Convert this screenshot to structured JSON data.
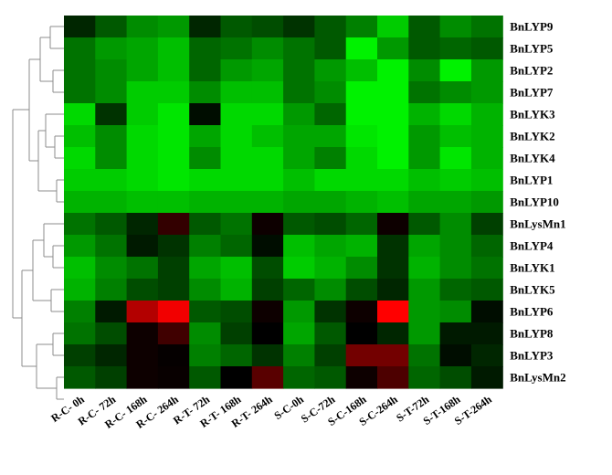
{
  "chart_data": {
    "type": "heatmap",
    "color_scale": {
      "low": "#00ff00",
      "mid": "#000000",
      "high": "#ff0000",
      "min": -1,
      "max": 1
    },
    "columns": [
      "R-C- 0h",
      "R-C- 72h",
      "R-C- 168h",
      "R-C- 264h",
      "R-T- 72h",
      "R-T- 168h",
      "R-T- 264h",
      "S-C-0h",
      "S-C-72h",
      "S-C-168h",
      "S-C-264h",
      "S-T-72h",
      "S-T-168h",
      "S-T-264h"
    ],
    "rows": [
      "BnLYP9",
      "BnLYP5",
      "BnLYP2",
      "BnLYP7",
      "BnLYK3",
      "BnLYK2",
      "BnLYK4",
      "BnLYP1",
      "BnLYP10",
      "BnLysMn1",
      "BnLYP4",
      "BnLYK1",
      "BnLYK5",
      "BnLYP6",
      "BnLYP8",
      "BnLYP3",
      "BnLysMn2"
    ],
    "values": [
      [
        -0.15,
        -0.35,
        -0.55,
        -0.6,
        -0.15,
        -0.35,
        -0.3,
        -0.2,
        -0.35,
        -0.5,
        -0.8,
        -0.35,
        -0.55,
        -0.45
      ],
      [
        -0.45,
        -0.6,
        -0.65,
        -0.75,
        -0.4,
        -0.45,
        -0.55,
        -0.45,
        -0.35,
        -0.95,
        -0.6,
        -0.35,
        -0.4,
        -0.35
      ],
      [
        -0.45,
        -0.55,
        -0.65,
        -0.75,
        -0.4,
        -0.6,
        -0.65,
        -0.45,
        -0.6,
        -0.75,
        -0.95,
        -0.55,
        -0.95,
        -0.6
      ],
      [
        -0.45,
        -0.55,
        -0.8,
        -0.8,
        -0.55,
        -0.75,
        -0.75,
        -0.45,
        -0.55,
        -0.95,
        -0.95,
        -0.45,
        -0.55,
        -0.6
      ],
      [
        -0.85,
        -0.2,
        -0.8,
        -0.9,
        -0.05,
        -0.85,
        -0.85,
        -0.6,
        -0.4,
        -0.95,
        -0.95,
        -0.7,
        -0.85,
        -0.7
      ],
      [
        -0.75,
        -0.55,
        -0.85,
        -0.9,
        -0.65,
        -0.85,
        -0.75,
        -0.65,
        -0.65,
        -0.9,
        -0.95,
        -0.6,
        -0.75,
        -0.7
      ],
      [
        -0.85,
        -0.55,
        -0.85,
        -0.9,
        -0.55,
        -0.85,
        -0.85,
        -0.65,
        -0.5,
        -0.85,
        -0.95,
        -0.6,
        -0.9,
        -0.7
      ],
      [
        -0.8,
        -0.8,
        -0.85,
        -0.9,
        -0.85,
        -0.85,
        -0.85,
        -0.75,
        -0.85,
        -0.85,
        -0.85,
        -0.75,
        -0.8,
        -0.75
      ],
      [
        -0.7,
        -0.7,
        -0.75,
        -0.75,
        -0.7,
        -0.7,
        -0.7,
        -0.65,
        -0.65,
        -0.7,
        -0.75,
        -0.65,
        -0.65,
        -0.6
      ],
      [
        -0.45,
        -0.35,
        -0.15,
        0.2,
        -0.35,
        -0.45,
        0.05,
        -0.35,
        -0.3,
        -0.4,
        0.05,
        -0.35,
        -0.55,
        -0.25
      ],
      [
        -0.6,
        -0.45,
        -0.1,
        -0.2,
        -0.5,
        -0.4,
        -0.05,
        -0.75,
        -0.65,
        -0.7,
        -0.2,
        -0.65,
        -0.55,
        -0.4
      ],
      [
        -0.75,
        -0.55,
        -0.45,
        -0.25,
        -0.65,
        -0.75,
        -0.3,
        -0.8,
        -0.7,
        -0.55,
        -0.2,
        -0.7,
        -0.55,
        -0.45
      ],
      [
        -0.7,
        -0.5,
        -0.3,
        -0.25,
        -0.55,
        -0.7,
        -0.25,
        -0.4,
        -0.55,
        -0.3,
        -0.15,
        -0.6,
        -0.4,
        -0.35
      ],
      [
        -0.5,
        -0.1,
        0.7,
        0.95,
        -0.35,
        -0.3,
        0.05,
        -0.6,
        -0.2,
        0.05,
        1.0,
        -0.6,
        -0.55,
        -0.05
      ],
      [
        -0.45,
        -0.3,
        0.05,
        0.25,
        -0.55,
        -0.25,
        0.0,
        -0.65,
        -0.35,
        0.0,
        -0.15,
        -0.6,
        -0.1,
        -0.1
      ],
      [
        -0.25,
        -0.15,
        0.05,
        0.02,
        -0.5,
        -0.4,
        -0.2,
        -0.5,
        -0.25,
        0.45,
        0.45,
        -0.45,
        -0.05,
        -0.15
      ],
      [
        -0.35,
        -0.25,
        0.05,
        0.03,
        -0.35,
        0.0,
        0.35,
        -0.4,
        -0.35,
        0.05,
        0.3,
        -0.4,
        -0.3,
        -0.1
      ]
    ]
  }
}
